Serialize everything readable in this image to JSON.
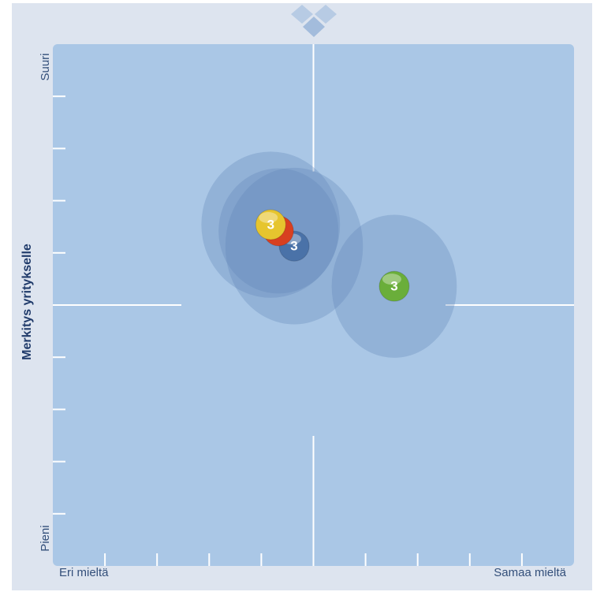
{
  "chart_data": {
    "type": "bubble",
    "ylabel": "Merkitys yritykselle",
    "y_max_label": "Suuri",
    "y_min_label": "Pieni",
    "x_min_label": "Eri mieltä",
    "x_max_label": "Samaa mieltä",
    "xlim": [
      0,
      10
    ],
    "ylim": [
      0,
      10
    ],
    "xticks": [
      1,
      2,
      3,
      4,
      5,
      6,
      7,
      8,
      9
    ],
    "yticks": [
      1,
      2,
      3,
      4,
      5,
      6,
      7,
      8,
      9
    ],
    "points": [
      {
        "color": "#6aae3a",
        "x": 6.55,
        "y": 5.36,
        "x_spread": 1.2,
        "y_spread": 1.37,
        "count": 3
      },
      {
        "color": "#4a72a8",
        "x": 4.63,
        "y": 6.13,
        "x_spread": 1.32,
        "y_spread": 1.5,
        "count": 3
      },
      {
        "color": "#d84020",
        "x": 4.33,
        "y": 6.42,
        "x_spread": 1.15,
        "y_spread": 1.2,
        "count": 3
      },
      {
        "color": "#e6c52e",
        "x": 4.18,
        "y": 6.54,
        "x_spread": 1.33,
        "y_spread": 1.4,
        "count": 3
      }
    ]
  }
}
